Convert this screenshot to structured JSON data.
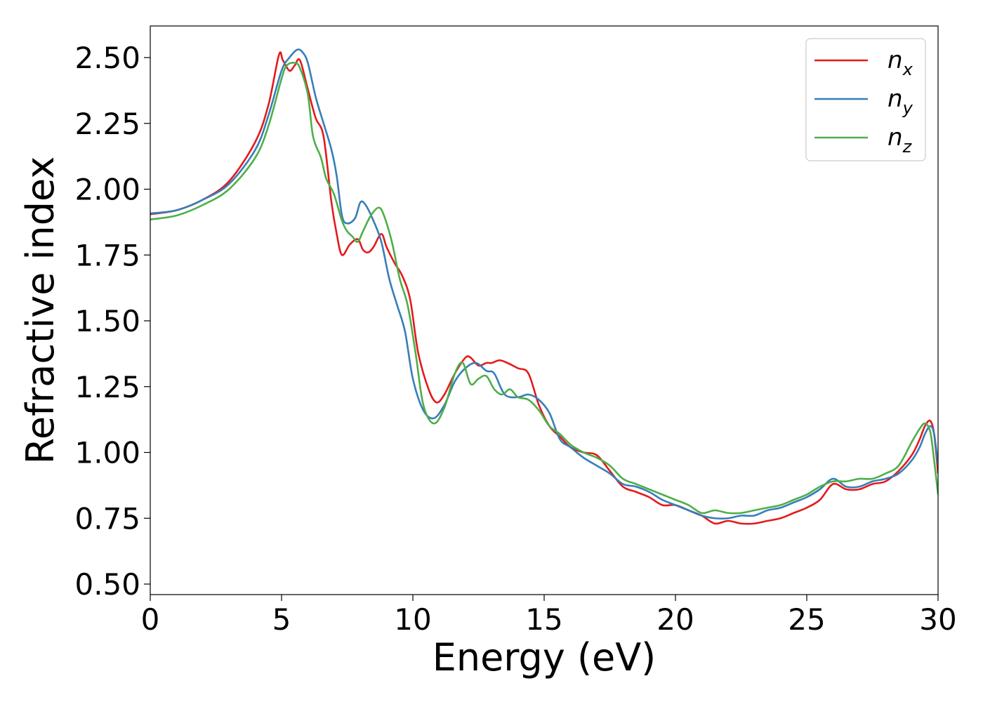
{
  "chart_data": {
    "type": "line",
    "title": "",
    "xlabel": "Energy (eV)",
    "ylabel": "Refractive index",
    "xlim": [
      0,
      30
    ],
    "ylim": [
      0.46,
      2.62
    ],
    "xticks": [
      0,
      5,
      10,
      15,
      20,
      25,
      30
    ],
    "xtick_labels": [
      "0",
      "5",
      "10",
      "15",
      "20",
      "25",
      "30"
    ],
    "yticks": [
      0.5,
      0.75,
      1.0,
      1.25,
      1.5,
      1.75,
      2.0,
      2.25,
      2.5
    ],
    "ytick_labels": [
      "0.50",
      "0.75",
      "1.00",
      "1.25",
      "1.50",
      "1.75",
      "2.00",
      "2.25",
      "2.50"
    ],
    "grid": false,
    "legend": "top-right",
    "series": [
      {
        "name": "n_x",
        "label_base": "n",
        "label_sub": "x",
        "color": "#e41a1c",
        "x": [
          0,
          1,
          2,
          3,
          4,
          4.5,
          4.9,
          5.05,
          5.3,
          5.5,
          5.7,
          6.0,
          6.3,
          6.6,
          6.9,
          7.1,
          7.3,
          7.6,
          7.9,
          8.1,
          8.3,
          8.5,
          8.8,
          9.0,
          9.3,
          9.6,
          9.9,
          10.2,
          10.6,
          10.9,
          11.2,
          11.6,
          12.0,
          12.2,
          12.5,
          12.8,
          13.0,
          13.3,
          13.6,
          14.0,
          14.4,
          14.8,
          15.2,
          15.6,
          16.0,
          16.5,
          17.0,
          17.5,
          18.0,
          18.5,
          19.0,
          19.5,
          20.0,
          20.5,
          21.0,
          21.5,
          22.0,
          22.5,
          23.0,
          23.5,
          24.0,
          24.5,
          25.0,
          25.5,
          26.0,
          26.5,
          27.0,
          27.5,
          28.0,
          28.5,
          29.0,
          29.3,
          29.5,
          29.7,
          29.85,
          30.0
        ],
        "y": [
          1.905,
          1.92,
          1.96,
          2.03,
          2.18,
          2.32,
          2.51,
          2.49,
          2.45,
          2.47,
          2.49,
          2.38,
          2.27,
          2.2,
          1.95,
          1.83,
          1.75,
          1.79,
          1.81,
          1.77,
          1.76,
          1.78,
          1.83,
          1.78,
          1.72,
          1.67,
          1.58,
          1.38,
          1.24,
          1.19,
          1.22,
          1.3,
          1.36,
          1.36,
          1.33,
          1.34,
          1.34,
          1.35,
          1.34,
          1.32,
          1.3,
          1.18,
          1.1,
          1.06,
          1.02,
          1.0,
          0.99,
          0.93,
          0.87,
          0.85,
          0.83,
          0.8,
          0.8,
          0.78,
          0.76,
          0.73,
          0.74,
          0.73,
          0.73,
          0.74,
          0.75,
          0.77,
          0.79,
          0.82,
          0.88,
          0.86,
          0.86,
          0.88,
          0.89,
          0.93,
          0.99,
          1.05,
          1.1,
          1.12,
          1.07,
          0.92
        ]
      },
      {
        "name": "n_y",
        "label_base": "n",
        "label_sub": "y",
        "color": "#377eb8",
        "x": [
          0,
          1,
          2,
          3,
          4,
          4.5,
          5.0,
          5.3,
          5.6,
          5.8,
          6.0,
          6.3,
          6.6,
          6.9,
          7.1,
          7.3,
          7.5,
          7.8,
          8.0,
          8.2,
          8.5,
          8.8,
          9.1,
          9.4,
          9.7,
          10.0,
          10.4,
          10.8,
          11.2,
          11.6,
          12.0,
          12.4,
          12.8,
          13.1,
          13.5,
          14.0,
          14.4,
          14.8,
          15.2,
          15.6,
          16.0,
          16.5,
          17.0,
          17.5,
          18.0,
          18.5,
          19.0,
          19.5,
          20.0,
          20.5,
          21.0,
          21.5,
          22.0,
          22.5,
          23.0,
          23.5,
          24.0,
          24.5,
          25.0,
          25.5,
          26.0,
          26.5,
          27.0,
          27.5,
          28.0,
          28.5,
          29.0,
          29.3,
          29.5,
          29.7,
          29.85,
          30.0
        ],
        "y": [
          1.908,
          1.92,
          1.96,
          2.02,
          2.15,
          2.28,
          2.45,
          2.5,
          2.53,
          2.52,
          2.48,
          2.35,
          2.25,
          2.15,
          2.05,
          1.9,
          1.87,
          1.89,
          1.95,
          1.94,
          1.88,
          1.8,
          1.66,
          1.56,
          1.46,
          1.28,
          1.16,
          1.13,
          1.18,
          1.27,
          1.32,
          1.34,
          1.31,
          1.3,
          1.22,
          1.21,
          1.22,
          1.2,
          1.15,
          1.05,
          1.02,
          0.98,
          0.95,
          0.92,
          0.88,
          0.87,
          0.85,
          0.82,
          0.8,
          0.78,
          0.76,
          0.75,
          0.75,
          0.76,
          0.76,
          0.78,
          0.79,
          0.81,
          0.83,
          0.86,
          0.9,
          0.87,
          0.87,
          0.89,
          0.9,
          0.92,
          0.97,
          1.02,
          1.07,
          1.1,
          1.07,
          0.95
        ]
      },
      {
        "name": "n_z",
        "label_base": "n",
        "label_sub": "z",
        "color": "#4daf4a",
        "x": [
          0,
          1,
          2,
          3,
          4,
          4.5,
          5.0,
          5.2,
          5.5,
          5.7,
          6.0,
          6.2,
          6.5,
          6.7,
          7.0,
          7.3,
          7.5,
          7.7,
          7.9,
          8.1,
          8.4,
          8.7,
          8.9,
          9.2,
          9.5,
          9.8,
          10.1,
          10.4,
          10.8,
          11.2,
          11.6,
          11.9,
          12.2,
          12.5,
          12.8,
          13.1,
          13.4,
          13.7,
          14.0,
          14.4,
          14.8,
          15.2,
          15.6,
          16.0,
          16.5,
          17.0,
          17.5,
          18.0,
          18.5,
          19.0,
          19.5,
          20.0,
          20.5,
          21.0,
          21.5,
          22.0,
          22.5,
          23.0,
          23.5,
          24.0,
          24.5,
          25.0,
          25.5,
          26.0,
          26.5,
          27.0,
          27.5,
          28.0,
          28.5,
          29.0,
          29.3,
          29.5,
          29.7,
          29.85,
          30.0
        ],
        "y": [
          1.885,
          1.9,
          1.94,
          2.0,
          2.12,
          2.24,
          2.42,
          2.47,
          2.48,
          2.46,
          2.36,
          2.2,
          2.12,
          2.04,
          1.98,
          1.88,
          1.84,
          1.82,
          1.8,
          1.84,
          1.9,
          1.93,
          1.9,
          1.8,
          1.66,
          1.56,
          1.38,
          1.18,
          1.11,
          1.17,
          1.3,
          1.34,
          1.26,
          1.28,
          1.29,
          1.24,
          1.22,
          1.24,
          1.21,
          1.2,
          1.16,
          1.1,
          1.07,
          1.03,
          1.0,
          0.98,
          0.95,
          0.9,
          0.88,
          0.86,
          0.84,
          0.82,
          0.8,
          0.77,
          0.78,
          0.77,
          0.77,
          0.78,
          0.79,
          0.8,
          0.82,
          0.84,
          0.87,
          0.89,
          0.89,
          0.9,
          0.9,
          0.92,
          0.95,
          1.04,
          1.09,
          1.11,
          1.08,
          0.97,
          0.84
        ]
      }
    ]
  }
}
